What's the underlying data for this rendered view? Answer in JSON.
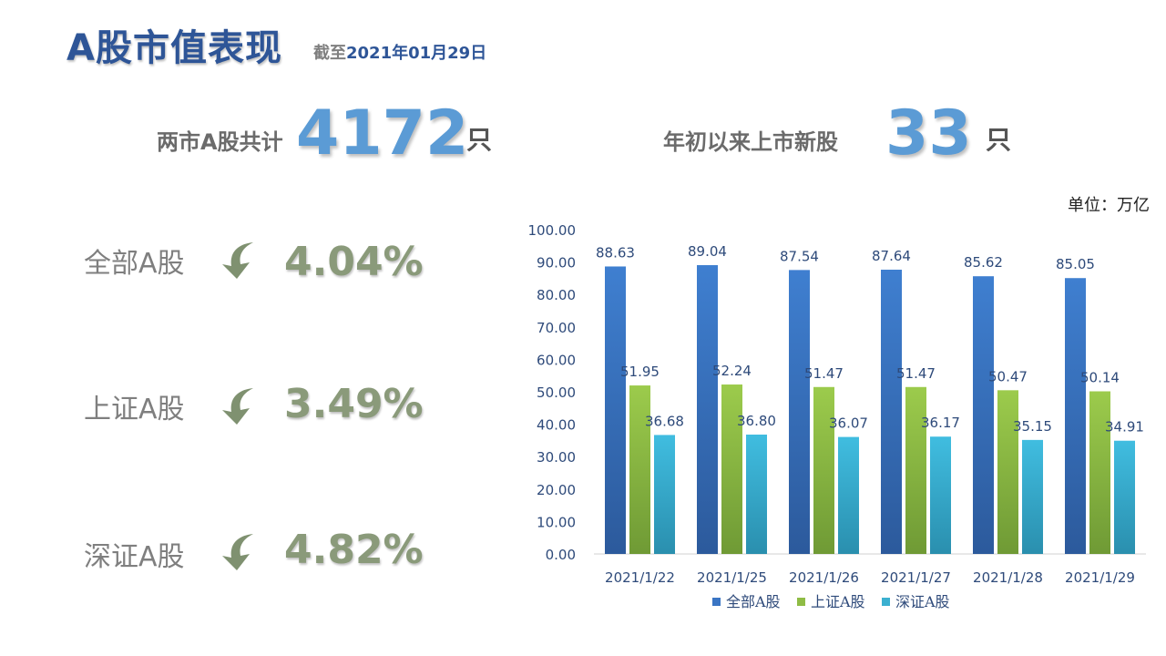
{
  "header": {
    "title": "A股市值表现",
    "subtitle_prefix": "截至",
    "subtitle_date": "2021年01月29日"
  },
  "kpis": [
    {
      "label": "两市A股共计",
      "value": "4172",
      "unit": "只"
    },
    {
      "label": "年初以来上市新股",
      "value": "33",
      "unit": "只"
    }
  ],
  "indices": [
    {
      "label": "全部A股",
      "value": "4.04%",
      "direction": "down",
      "icon": "down-arrow-icon"
    },
    {
      "label": "上证A股",
      "value": "3.49%",
      "direction": "down",
      "icon": "down-arrow-icon"
    },
    {
      "label": "深证A股",
      "value": "4.82%",
      "direction": "down",
      "icon": "down-arrow-icon"
    }
  ],
  "colors": {
    "title": "#2e5597",
    "kpi_number": "#5b9bd5",
    "index_value": "#8a9a7a",
    "arrow": "#7f9170",
    "series_all": "#3a75c4",
    "series_sh": "#8fbc45",
    "series_sz": "#3bb0d0"
  },
  "chart_data": {
    "type": "bar",
    "unit_label": "单位：万亿",
    "categories": [
      "2021/1/22",
      "2021/1/25",
      "2021/1/26",
      "2021/1/27",
      "2021/1/28",
      "2021/1/29"
    ],
    "series": [
      {
        "name": "全部A股",
        "values": [
          88.63,
          89.04,
          87.54,
          87.64,
          85.62,
          85.05
        ]
      },
      {
        "name": "上证A股",
        "values": [
          51.95,
          52.24,
          51.47,
          51.47,
          50.47,
          50.14
        ]
      },
      {
        "name": "深证A股",
        "values": [
          36.68,
          36.8,
          36.07,
          36.17,
          35.15,
          34.91
        ]
      }
    ],
    "ylim": [
      0,
      100
    ],
    "yticks": [
      "0.00",
      "10.00",
      "20.00",
      "30.00",
      "40.00",
      "50.00",
      "60.00",
      "70.00",
      "80.00",
      "90.00",
      "100.00"
    ],
    "legend": "bottom",
    "grid": false
  }
}
